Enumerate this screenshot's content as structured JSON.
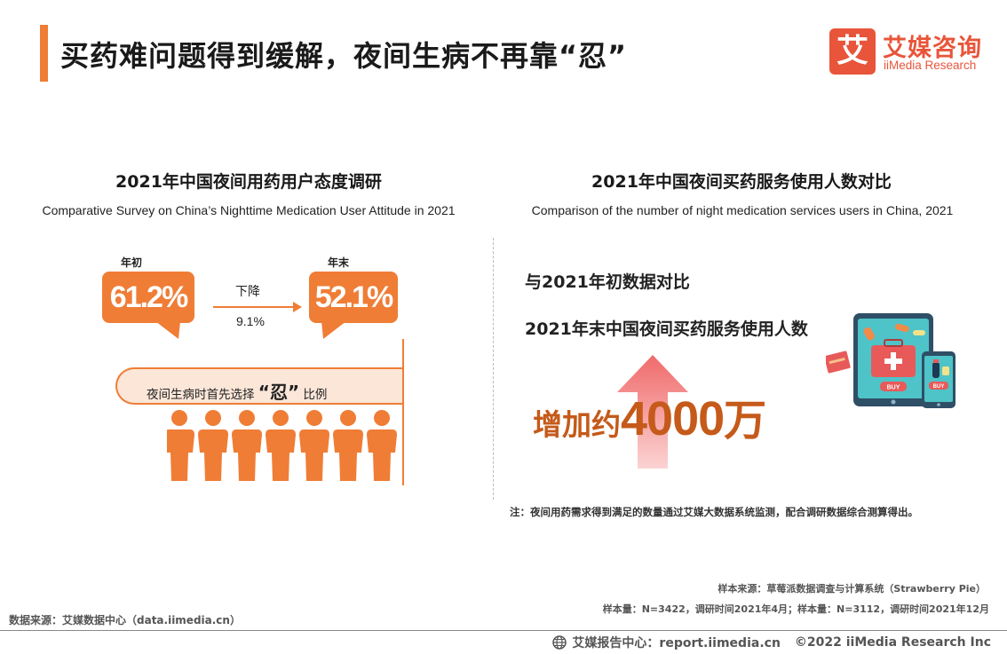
{
  "header": {
    "title": "买药难问题得到缓解，夜间生病不再靠“忍”",
    "logo_mark": "艾",
    "logo_cn": "艾媒咨询",
    "logo_en": "iiMedia Research",
    "accent_color": "#ef7d36",
    "logo_color": "#e8553a"
  },
  "left_panel": {
    "title": "2021年中国夜间用药用户态度调研",
    "subtitle": "Comparative Survey on China’s Nighttime Medication User Attitude in 2021",
    "start_label": "年初",
    "start_value": "61.2%",
    "end_label": "年末",
    "end_value": "52.1%",
    "change_label": "下降",
    "change_value": "9.1%",
    "pill_prefix": "夜间生病时首先选择",
    "pill_strong": "“忍”",
    "pill_suffix": "比例"
  },
  "right_panel": {
    "title": "2021年中国夜间买药服务使用人数对比",
    "subtitle": "Comparison of the number of night medication services users in China, 2021",
    "compare_line1": "与2021年初数据对比",
    "compare_line2": "2021年末中国夜间买药服务使用人数",
    "increase_prefix": "增加约",
    "increase_number": "4000",
    "increase_unit": "万",
    "illustration_icon": "phone-shopping-medicine-icon",
    "buy_label_1": "BUY",
    "buy_label_2": "BUY",
    "note": "注：夜间用药需求得到满足的数量通过艾媒大数据系统监测，配合调研数据综合测算得出。"
  },
  "sources": {
    "sample_source": "样本来源：草莓派数据调查与计算系统（Strawberry Pie）",
    "sample_size": "样本量：N=3422，调研时间2021年4月；样本量：N=3112，调研时间2021年12月",
    "data_source": "数据来源：艾媒数据中心（data.iimedia.cn）"
  },
  "footer": {
    "report_center": "艾媒报告中心：report.iimedia.cn",
    "copyright": "©2022  iiMedia Research Inc"
  }
}
